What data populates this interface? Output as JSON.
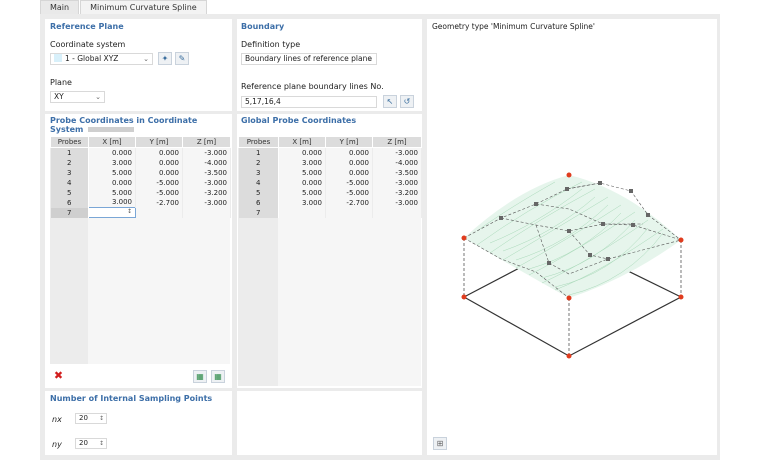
{
  "tabs": [
    "Main",
    "Minimum Curvature Spline"
  ],
  "reference_plane": {
    "title": "Reference Plane",
    "coord_label": "Coordinate system",
    "coord_value": "1 - Global XYZ",
    "plane_label": "Plane",
    "plane_value": "XY"
  },
  "boundary": {
    "title": "Boundary",
    "def_label": "Definition type",
    "def_value": "Boundary lines of reference plane",
    "lines_label": "Reference plane boundary lines No.",
    "lines_value": "5,17,16,4"
  },
  "probe_table": {
    "title": "Probe Coordinates in Coordinate System",
    "headers": [
      "Probes",
      "X [m]",
      "Y [m]",
      "Z [m]"
    ],
    "rows": [
      [
        "1",
        "0.000",
        "0.000",
        "-3.000"
      ],
      [
        "2",
        "3.000",
        "0.000",
        "-4.000"
      ],
      [
        "3",
        "5.000",
        "0.000",
        "-3.500"
      ],
      [
        "4",
        "0.000",
        "-5.000",
        "-3.000"
      ],
      [
        "5",
        "5.000",
        "-5.000",
        "-3.200"
      ],
      [
        "6",
        "3.000",
        "-2.700",
        "-3.000"
      ],
      [
        "7",
        "",
        "",
        ""
      ]
    ]
  },
  "global_table": {
    "title": "Global Probe Coordinates",
    "headers": [
      "Probes",
      "X [m]",
      "Y [m]",
      "Z [m]"
    ],
    "rows": [
      [
        "1",
        "0.000",
        "0.000",
        "-3.000"
      ],
      [
        "2",
        "3.000",
        "0.000",
        "-4.000"
      ],
      [
        "3",
        "5.000",
        "0.000",
        "-3.500"
      ],
      [
        "4",
        "0.000",
        "-5.000",
        "-3.000"
      ],
      [
        "5",
        "5.000",
        "-5.000",
        "-3.200"
      ],
      [
        "6",
        "3.000",
        "-2.700",
        "-3.000"
      ],
      [
        "7",
        "",
        "",
        ""
      ]
    ]
  },
  "sampling": {
    "title": "Number of Internal Sampling Points",
    "nx_label": "nx",
    "nx_value": "20",
    "ny_label": "ny",
    "ny_value": "20"
  },
  "preview": {
    "title": "Geometry type 'Minimum Curvature Spline'"
  },
  "colors": {
    "title_blue": "#3d6fa8",
    "delete_red": "#d21e1e",
    "node_red": "#e03c1e",
    "surface_green": "#9fd8b4"
  }
}
